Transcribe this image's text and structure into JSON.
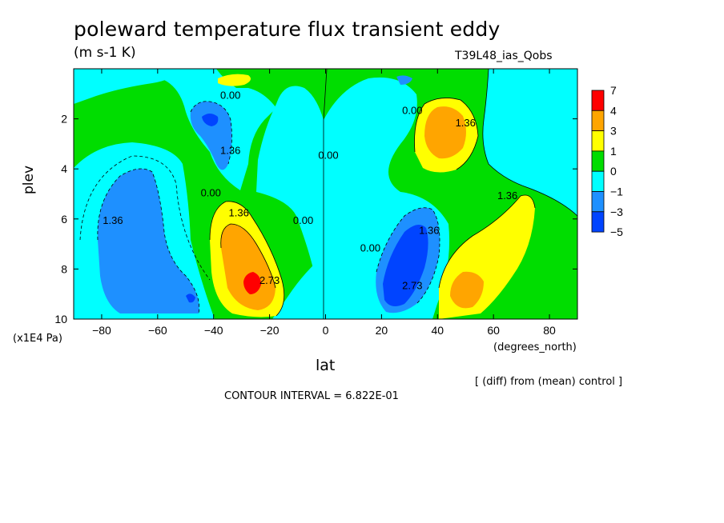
{
  "chart_data": {
    "type": "heatmap",
    "title": "poleward temperature flux transient eddy",
    "units": "(m s-1 K)",
    "run_label": "T39L48_ias_Qobs",
    "xlabel": "lat",
    "xunit": "(degrees_north)",
    "ylabel": "plev",
    "yunit": "(x1E4 Pa)",
    "xlim": [
      -90,
      90
    ],
    "ylim": [
      10,
      0
    ],
    "xticks": [
      -80,
      -60,
      -40,
      -20,
      0,
      20,
      40,
      60,
      80
    ],
    "yticks": [
      2,
      4,
      6,
      8,
      10
    ],
    "contour_labels": [
      {
        "text": "0.00",
        "lat": -34,
        "plev": 1.2
      },
      {
        "text": "1.36",
        "lat": -34,
        "plev": 3.4
      },
      {
        "text": "1.36",
        "lat": -76,
        "plev": 6.2
      },
      {
        "text": "0.00",
        "lat": -41,
        "plev": 5.1
      },
      {
        "text": "1.36",
        "lat": -31,
        "plev": 5.9
      },
      {
        "text": "2.73",
        "lat": -20,
        "plev": 8.6
      },
      {
        "text": "0.00",
        "lat": -8,
        "plev": 6.2
      },
      {
        "text": "0.00",
        "lat": 1,
        "plev": 3.6
      },
      {
        "text": "0.00",
        "lat": 31,
        "plev": 1.8
      },
      {
        "text": "1.36",
        "lat": 50,
        "plev": 2.3
      },
      {
        "text": "1.36",
        "lat": 65,
        "plev": 5.2
      },
      {
        "text": "0.00",
        "lat": 16,
        "plev": 7.3
      },
      {
        "text": "1.36",
        "lat": 37,
        "plev": 6.6
      },
      {
        "text": "2.73",
        "lat": 31,
        "plev": 8.8
      }
    ],
    "colorbar": {
      "labels": [
        "7",
        "4",
        "3",
        "1",
        "0",
        "-1",
        "-3",
        "-5"
      ],
      "colors": [
        "#ff0000",
        "#ffa500",
        "#ffff00",
        "#00dd00",
        "#00ffff",
        "#1e90ff",
        "#0044ff"
      ]
    },
    "note": "[ (diff) from (mean) control ]",
    "contour_interval": "CONTOUR INTERVAL = 6.822E-01"
  }
}
